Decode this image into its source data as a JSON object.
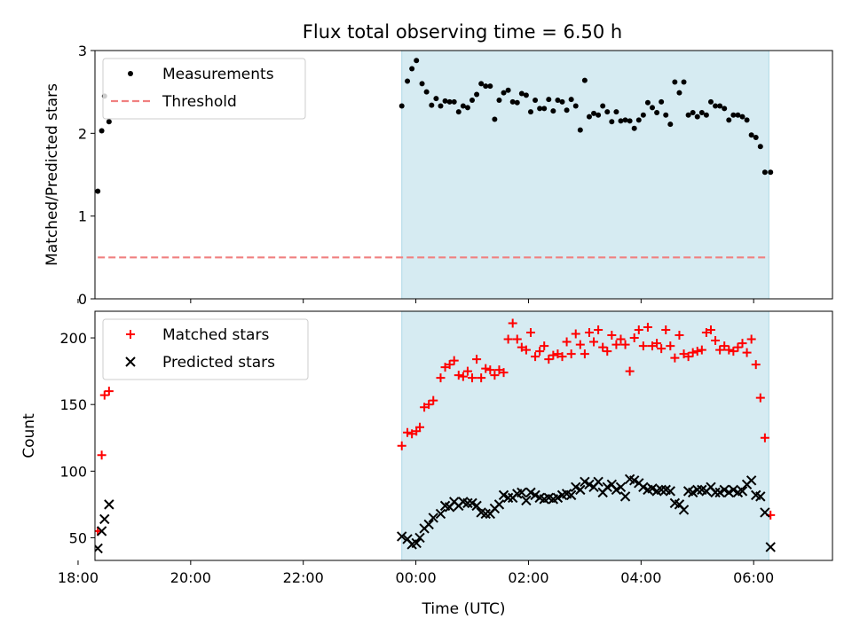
{
  "title": "Flux total observing time = 6.50 h",
  "colors": {
    "measurements": "#000000",
    "threshold": "#f08080",
    "matched": "#ff0000",
    "predicted": "#000000",
    "observing_window": "#add8e6"
  },
  "chart_data": [
    {
      "type": "scatter",
      "panel": "top",
      "ylabel": "Matched/Predicted stars",
      "xlim": [
        -5.7,
        7.4
      ],
      "ylim": [
        0,
        3
      ],
      "yticks": [
        0,
        1,
        2,
        3
      ],
      "xticks": [
        -6,
        -4,
        -2,
        0,
        2,
        4,
        6
      ],
      "observing_window": [
        -0.25,
        6.27
      ],
      "threshold": {
        "y": 0.5,
        "x_range": [
          -5.65,
          6.27
        ]
      },
      "legend": {
        "position": "top-left",
        "entries": [
          {
            "label": "Measurements",
            "marker": "dot"
          },
          {
            "label": "Threshold",
            "marker": "dashed-line"
          }
        ]
      },
      "series": [
        {
          "name": "Measurements",
          "x": [
            -5.65,
            -5.58,
            -5.53,
            -5.45,
            -0.25,
            -0.15,
            -0.07,
            0.01,
            0.11,
            0.19,
            0.28,
            0.36,
            0.44,
            0.52,
            0.6,
            0.68,
            0.76,
            0.84,
            0.92,
            1.0,
            1.08,
            1.16,
            1.24,
            1.32,
            1.4,
            1.48,
            1.56,
            1.64,
            1.72,
            1.8,
            1.88,
            1.96,
            2.04,
            2.12,
            2.2,
            2.28,
            2.36,
            2.44,
            2.52,
            2.6,
            2.68,
            2.76,
            2.84,
            2.92,
            3.0,
            3.08,
            3.16,
            3.24,
            3.32,
            3.4,
            3.48,
            3.56,
            3.64,
            3.72,
            3.8,
            3.88,
            3.96,
            4.04,
            4.12,
            4.2,
            4.28,
            4.36,
            4.44,
            4.52,
            4.6,
            4.68,
            4.76,
            4.84,
            4.92,
            5.0,
            5.08,
            5.16,
            5.24,
            5.32,
            5.4,
            5.48,
            5.56,
            5.64,
            5.72,
            5.8,
            5.88,
            5.96,
            6.04,
            6.12,
            6.2,
            6.3
          ],
          "y": [
            1.3,
            2.03,
            2.45,
            2.14,
            2.33,
            2.63,
            2.78,
            2.88,
            2.6,
            2.5,
            2.34,
            2.42,
            2.33,
            2.39,
            2.38,
            2.38,
            2.26,
            2.33,
            2.31,
            2.4,
            2.47,
            2.6,
            2.57,
            2.57,
            2.17,
            2.4,
            2.49,
            2.52,
            2.38,
            2.37,
            2.48,
            2.46,
            2.26,
            2.4,
            2.3,
            2.3,
            2.41,
            2.27,
            2.4,
            2.38,
            2.28,
            2.41,
            2.33,
            2.04,
            2.64,
            2.2,
            2.24,
            2.22,
            2.33,
            2.26,
            2.14,
            2.26,
            2.15,
            2.16,
            2.15,
            2.06,
            2.16,
            2.22,
            2.37,
            2.31,
            2.25,
            2.38,
            2.22,
            2.11,
            2.62,
            2.49,
            2.62,
            2.22,
            2.25,
            2.2,
            2.25,
            2.22,
            2.38,
            2.33,
            2.33,
            2.3,
            2.16,
            2.22,
            2.22,
            2.2,
            2.16,
            1.98,
            1.95,
            1.84,
            1.53,
            1.53
          ]
        }
      ]
    },
    {
      "type": "scatter",
      "panel": "bottom",
      "xlabel": "Time (UTC)",
      "ylabel": "Count",
      "xlim": [
        -5.7,
        7.4
      ],
      "ylim": [
        33,
        220
      ],
      "yticks": [
        50,
        100,
        150,
        200
      ],
      "xticks": [
        -6,
        -4,
        -2,
        0,
        2,
        4,
        6
      ],
      "xtick_labels": [
        "18:00",
        "20:00",
        "22:00",
        "00:00",
        "02:00",
        "04:00",
        "06:00"
      ],
      "observing_window": [
        -0.25,
        6.27
      ],
      "legend": {
        "position": "top-left",
        "entries": [
          {
            "label": "Matched stars",
            "marker": "plus"
          },
          {
            "label": "Predicted stars",
            "marker": "cross"
          }
        ]
      },
      "series": [
        {
          "name": "Matched stars",
          "x": [
            -5.65,
            -5.58,
            -5.53,
            -5.45,
            -0.25,
            -0.15,
            -0.07,
            0.01,
            0.07,
            0.15,
            0.23,
            0.31,
            0.44,
            0.52,
            0.6,
            0.68,
            0.76,
            0.84,
            0.92,
            1.0,
            1.08,
            1.16,
            1.24,
            1.32,
            1.4,
            1.48,
            1.56,
            1.64,
            1.72,
            1.8,
            1.88,
            1.96,
            2.04,
            2.12,
            2.2,
            2.28,
            2.36,
            2.44,
            2.52,
            2.6,
            2.68,
            2.76,
            2.84,
            2.92,
            3.0,
            3.08,
            3.16,
            3.24,
            3.32,
            3.4,
            3.48,
            3.56,
            3.64,
            3.72,
            3.8,
            3.88,
            3.96,
            4.04,
            4.12,
            4.2,
            4.28,
            4.36,
            4.44,
            4.52,
            4.6,
            4.68,
            4.76,
            4.84,
            4.92,
            5.0,
            5.08,
            5.16,
            5.24,
            5.32,
            5.4,
            5.48,
            5.56,
            5.64,
            5.72,
            5.8,
            5.88,
            5.96,
            6.04,
            6.12,
            6.2,
            6.3
          ],
          "y": [
            55,
            112,
            157,
            160,
            119,
            129,
            128,
            130,
            133,
            148,
            150,
            153,
            170,
            178,
            180,
            183,
            172,
            171,
            175,
            170,
            184,
            170,
            177,
            176,
            172,
            176,
            174,
            199,
            211,
            199,
            193,
            191,
            204,
            186,
            190,
            194,
            184,
            187,
            188,
            186,
            197,
            188,
            203,
            195,
            188,
            204,
            197,
            206,
            193,
            190,
            202,
            195,
            199,
            195,
            175,
            200,
            206,
            194,
            208,
            194,
            196,
            192,
            206,
            194,
            185,
            202,
            188,
            186,
            189,
            190,
            191,
            204,
            206,
            198,
            191,
            194,
            191,
            190,
            193,
            196,
            189,
            199,
            180,
            155,
            125,
            67
          ]
        },
        {
          "name": "Predicted stars",
          "x": [
            -5.65,
            -5.58,
            -5.53,
            -5.45,
            -0.25,
            -0.15,
            -0.07,
            0.01,
            0.07,
            0.15,
            0.23,
            0.31,
            0.44,
            0.52,
            0.6,
            0.68,
            0.76,
            0.84,
            0.92,
            1.0,
            1.08,
            1.16,
            1.24,
            1.32,
            1.4,
            1.48,
            1.56,
            1.64,
            1.72,
            1.8,
            1.88,
            1.96,
            2.04,
            2.12,
            2.2,
            2.28,
            2.36,
            2.44,
            2.52,
            2.6,
            2.68,
            2.76,
            2.84,
            2.92,
            3.0,
            3.08,
            3.16,
            3.24,
            3.32,
            3.4,
            3.48,
            3.56,
            3.64,
            3.72,
            3.8,
            3.88,
            3.96,
            4.04,
            4.12,
            4.2,
            4.28,
            4.36,
            4.44,
            4.52,
            4.6,
            4.68,
            4.76,
            4.84,
            4.92,
            5.0,
            5.08,
            5.16,
            5.24,
            5.32,
            5.4,
            5.48,
            5.56,
            5.64,
            5.72,
            5.8,
            5.88,
            5.96,
            6.04,
            6.12,
            6.2,
            6.3
          ],
          "y": [
            42,
            55,
            64,
            75,
            51,
            49,
            45,
            46,
            50,
            57,
            60,
            65,
            68,
            74,
            73,
            77,
            74,
            77,
            76,
            76,
            74,
            69,
            68,
            68,
            72,
            75,
            82,
            80,
            80,
            83,
            84,
            78,
            84,
            82,
            80,
            79,
            80,
            79,
            80,
            82,
            83,
            82,
            88,
            86,
            92,
            90,
            88,
            92,
            84,
            88,
            90,
            86,
            88,
            81,
            94,
            93,
            91,
            88,
            86,
            87,
            85,
            86,
            86,
            85,
            76,
            75,
            71,
            85,
            84,
            86,
            86,
            85,
            88,
            84,
            84,
            86,
            84,
            86,
            84,
            85,
            90,
            93,
            82,
            81,
            69,
            43
          ]
        }
      ]
    }
  ]
}
